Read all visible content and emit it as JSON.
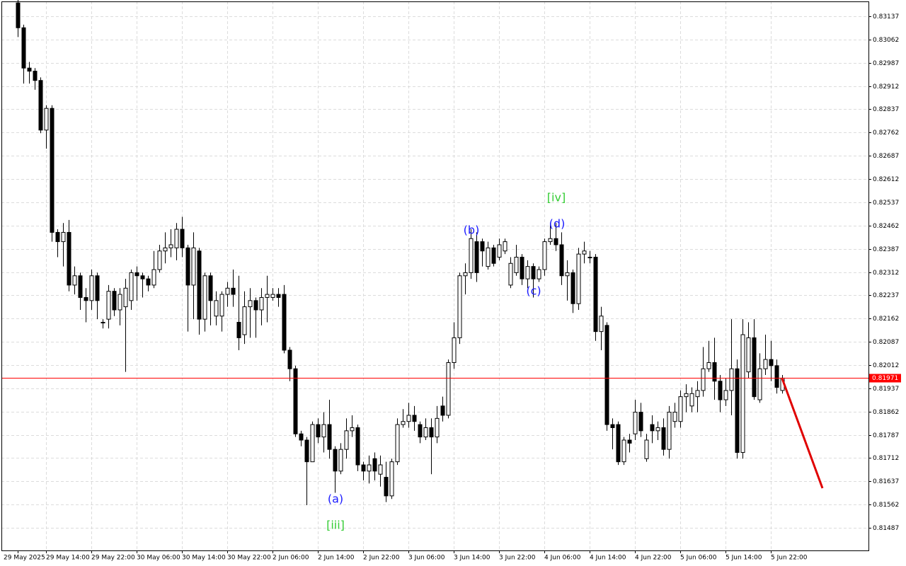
{
  "chart_data": {
    "type": "candlestick",
    "categories": [
      "29 May 2025",
      null,
      null,
      null,
      null,
      "29 May 14:00",
      null,
      null,
      null,
      null,
      null,
      null,
      null,
      "29 May 22:00",
      null,
      null,
      null,
      null,
      null,
      null,
      null,
      "30 May 06:00",
      null,
      null,
      null,
      null,
      null,
      null,
      null,
      "30 May 14:00",
      null,
      null,
      null,
      null,
      null,
      null,
      null,
      "30 May 22:00",
      null,
      null,
      null,
      null,
      null,
      null,
      null,
      "2 Jun 06:00",
      null,
      null,
      null,
      null,
      null,
      null,
      null,
      "2 Jun 14:00",
      null,
      null,
      null,
      null,
      null,
      null,
      null,
      "2 Jun 22:00",
      null,
      null,
      null,
      null,
      null,
      null,
      null,
      "3 Jun 06:00",
      null,
      null,
      null,
      null,
      null,
      null,
      null,
      "3 Jun 14:00",
      null,
      null,
      null,
      null,
      null,
      null,
      null,
      "3 Jun 22:00",
      null,
      null,
      null,
      null,
      null,
      null,
      null,
      "4 Jun 06:00",
      null,
      null,
      null,
      null,
      null,
      null,
      null,
      "4 Jun 14:00",
      null,
      null,
      null,
      null,
      null,
      null,
      null,
      "4 Jun 22:00",
      null,
      null,
      null,
      null,
      null,
      null,
      null,
      "5 Jun 06:00",
      null,
      null,
      null,
      null,
      null,
      null,
      null,
      "5 Jun 14:00",
      null,
      null,
      null,
      null,
      null,
      null,
      null,
      "5 Jun 22:00",
      null,
      null
    ],
    "open": [
      0.8318,
      0.831,
      0.8297,
      0.8296,
      0.8293,
      0.8277,
      0.8284,
      0.8244,
      0.8241,
      0.8244,
      0.8227,
      0.823,
      0.8223,
      0.8222,
      0.823,
      0.8215,
      0.8216,
      0.8225,
      0.8219,
      0.822,
      0.8222,
      0.8231,
      0.823,
      0.8229,
      0.8227,
      0.8232,
      0.8238,
      0.8239,
      0.8239,
      0.8245,
      0.8239,
      0.8227,
      0.8238,
      0.8216,
      0.823,
      0.8217,
      0.8217,
      0.8224,
      0.8226,
      0.8215,
      0.8211,
      0.822,
      0.8222,
      0.8219,
      0.8223,
      0.8223,
      0.8224,
      0.8224,
      0.8206,
      0.82,
      0.8179,
      0.8177,
      0.817,
      0.8182,
      0.8178,
      0.8182,
      0.8174,
      0.8167,
      0.8174,
      0.818,
      0.8181,
      0.8169,
      0.8167,
      0.8171,
      0.8166,
      0.8165,
      0.8159,
      0.817,
      0.8182,
      0.8183,
      0.8185,
      0.8182,
      0.8178,
      0.8181,
      0.8178,
      0.8188,
      0.8185,
      0.8202,
      0.821,
      0.823,
      0.8231,
      0.8241,
      0.8241,
      0.8233,
      0.8239,
      0.8236,
      0.8238,
      0.8227,
      0.8231,
      0.8236,
      0.8229,
      0.8233,
      0.8229,
      0.8232,
      0.8241,
      0.8242,
      0.824,
      0.823,
      0.8231,
      0.8221,
      0.8237,
      0.8236,
      0.8236,
      0.8212,
      0.8214,
      0.8182,
      0.8182,
      0.817,
      0.8177,
      0.8179,
      0.8186,
      0.8171,
      0.8182,
      0.818,
      0.8181,
      0.8174,
      0.8183,
      0.8183,
      0.8191,
      0.8188,
      0.8191,
      0.8193,
      0.82,
      0.8202,
      0.8196,
      0.819,
      0.8193,
      0.82,
      0.8173,
      0.8199,
      0.821,
      0.819,
      0.82,
      0.8203,
      0.8201,
      0.8193
    ],
    "high": [
      0.8319,
      0.8311,
      0.8299,
      0.8297,
      0.8294,
      0.8285,
      0.8285,
      0.8245,
      0.8247,
      0.8248,
      0.8233,
      0.8231,
      0.8226,
      0.8232,
      0.8231,
      0.8216,
      0.8227,
      0.8226,
      0.8226,
      0.8229,
      0.8232,
      0.8233,
      0.8231,
      0.823,
      0.8238,
      0.824,
      0.8244,
      0.8245,
      0.8247,
      0.8249,
      0.824,
      0.8244,
      0.8239,
      0.8231,
      0.8231,
      0.8225,
      0.8225,
      0.8228,
      0.8232,
      0.823,
      0.8225,
      0.8226,
      0.8223,
      0.8226,
      0.823,
      0.8226,
      0.8226,
      0.8227,
      0.8207,
      0.8201,
      0.818,
      0.8178,
      0.8183,
      0.8184,
      0.8186,
      0.819,
      0.8175,
      0.8176,
      0.8184,
      0.8185,
      0.8182,
      0.817,
      0.8172,
      0.8173,
      0.8172,
      0.817,
      0.8171,
      0.8184,
      0.8187,
      0.8189,
      0.8188,
      0.8183,
      0.8184,
      0.8184,
      0.8188,
      0.8191,
      0.8203,
      0.8215,
      0.8231,
      0.8234,
      0.8245,
      0.8244,
      0.8242,
      0.8241,
      0.824,
      0.8242,
      0.8242,
      0.8236,
      0.824,
      0.8237,
      0.8235,
      0.8234,
      0.8233,
      0.8242,
      0.8247,
      0.8247,
      0.8244,
      0.8235,
      0.8232,
      0.8239,
      0.8241,
      0.8238,
      0.8237,
      0.822,
      0.8215,
      0.8184,
      0.8183,
      0.8178,
      0.8179,
      0.819,
      0.8189,
      0.8179,
      0.8185,
      0.8183,
      0.8184,
      0.8188,
      0.8189,
      0.8193,
      0.8195,
      0.8194,
      0.8196,
      0.8207,
      0.8209,
      0.821,
      0.8198,
      0.8197,
      0.8216,
      0.8203,
      0.8216,
      0.8215,
      0.8216,
      0.8205,
      0.8211,
      0.8209,
      0.8203,
      0.8198
    ],
    "low": [
      0.8307,
      0.8292,
      0.8292,
      0.829,
      0.8276,
      0.8271,
      0.8241,
      0.8236,
      0.8233,
      0.8225,
      0.8224,
      0.8219,
      0.8215,
      0.8219,
      0.8216,
      0.8213,
      0.8213,
      0.8217,
      0.8214,
      0.8199,
      0.8219,
      0.8222,
      0.8223,
      0.8225,
      0.8226,
      0.8231,
      0.8234,
      0.8236,
      0.8235,
      0.8236,
      0.8212,
      0.8216,
      0.8211,
      0.8212,
      0.8214,
      0.8214,
      0.8212,
      0.822,
      0.822,
      0.8206,
      0.8208,
      0.821,
      0.821,
      0.8214,
      0.8215,
      0.8222,
      0.822,
      0.8205,
      0.8196,
      0.8178,
      0.8175,
      0.8156,
      0.817,
      0.8176,
      0.8173,
      0.8171,
      0.816,
      0.8166,
      0.8171,
      0.8178,
      0.8167,
      0.8164,
      0.8163,
      0.8164,
      0.8162,
      0.8157,
      0.8158,
      0.8169,
      0.8181,
      0.8181,
      0.818,
      0.8176,
      0.8177,
      0.8166,
      0.8176,
      0.8183,
      0.8184,
      0.82,
      0.8208,
      0.8224,
      0.8229,
      0.8228,
      0.8233,
      0.8232,
      0.8233,
      0.8235,
      0.8237,
      0.8226,
      0.823,
      0.8227,
      0.8226,
      0.8223,
      0.8228,
      0.823,
      0.824,
      0.8238,
      0.8227,
      0.8222,
      0.8218,
      0.8219,
      0.8234,
      0.8234,
      0.8209,
      0.8206,
      0.818,
      0.8174,
      0.8169,
      0.8169,
      0.8173,
      0.8177,
      0.8178,
      0.817,
      0.8176,
      0.8177,
      0.8172,
      0.8171,
      0.8181,
      0.8181,
      0.8186,
      0.8186,
      0.8186,
      0.8191,
      0.8199,
      0.819,
      0.8186,
      0.8188,
      0.8185,
      0.8171,
      0.8171,
      0.8197,
      0.819,
      0.8189,
      0.8198,
      0.8196,
      0.8192,
      0.8192
    ],
    "close": [
      0.831,
      0.8297,
      0.8296,
      0.8293,
      0.8277,
      0.8284,
      0.8244,
      0.8241,
      0.8244,
      0.8227,
      0.823,
      0.8223,
      0.8222,
      0.823,
      0.8222,
      0.8215,
      0.8225,
      0.8219,
      0.8224,
      0.8226,
      0.8231,
      0.823,
      0.8229,
      0.8227,
      0.8232,
      0.8238,
      0.8239,
      0.824,
      0.8245,
      0.8239,
      0.8227,
      0.8239,
      0.8216,
      0.823,
      0.8222,
      0.8222,
      0.8224,
      0.8226,
      0.8224,
      0.821,
      0.822,
      0.8222,
      0.8219,
      0.8223,
      0.8224,
      0.8224,
      0.8223,
      0.8206,
      0.82,
      0.8179,
      0.8177,
      0.817,
      0.8182,
      0.8178,
      0.8182,
      0.8174,
      0.8167,
      0.8174,
      0.818,
      0.8181,
      0.8169,
      0.8167,
      0.8169,
      0.8167,
      0.8169,
      0.8159,
      0.817,
      0.8182,
      0.8183,
      0.8185,
      0.8183,
      0.8178,
      0.8181,
      0.8178,
      0.8184,
      0.8185,
      0.8202,
      0.821,
      0.823,
      0.8231,
      0.8242,
      0.8231,
      0.8238,
      0.8239,
      0.8234,
      0.824,
      0.8241,
      0.8234,
      0.8236,
      0.8229,
      0.8233,
      0.8229,
      0.8232,
      0.8241,
      0.8242,
      0.824,
      0.823,
      0.8231,
      0.8221,
      0.8237,
      0.8238,
      0.8236,
      0.8212,
      0.8217,
      0.8182,
      0.8181,
      0.817,
      0.8177,
      0.8176,
      0.8186,
      0.818,
      0.8177,
      0.818,
      0.8181,
      0.8174,
      0.8186,
      0.8186,
      0.8191,
      0.8192,
      0.8192,
      0.8193,
      0.82,
      0.8202,
      0.8196,
      0.819,
      0.8193,
      0.82,
      0.8173,
      0.8211,
      0.821,
      0.8191,
      0.82,
      0.8203,
      0.8201,
      0.8194,
      0.8197
    ],
    "up_color": "#ffffff",
    "down_color": "#000000",
    "ylim": [
      0.81414,
      0.83185
    ],
    "yticks": [
      0.83137,
      0.83062,
      0.82987,
      0.82912,
      0.82837,
      0.82762,
      0.82687,
      0.82612,
      0.82537,
      0.82462,
      0.82387,
      0.82312,
      0.82237,
      0.82162,
      0.82087,
      0.82012,
      0.81937,
      0.81862,
      0.81787,
      0.81712,
      0.81637,
      0.81562,
      0.81487
    ],
    "grid": true,
    "current_price": 0.81971,
    "current_price_color": "#ff0000",
    "annotations": [
      {
        "text": "[iii]",
        "color": "#33cc33"
      },
      {
        "text": "(a)",
        "color": "#1a1aff"
      },
      {
        "text": "(b)",
        "color": "#1a1aff"
      },
      {
        "text": "(c)",
        "color": "#1a1aff"
      },
      {
        "text": "(d)",
        "color": "#1a1aff"
      },
      {
        "text": "[iv]",
        "color": "#33cc33"
      }
    ]
  }
}
